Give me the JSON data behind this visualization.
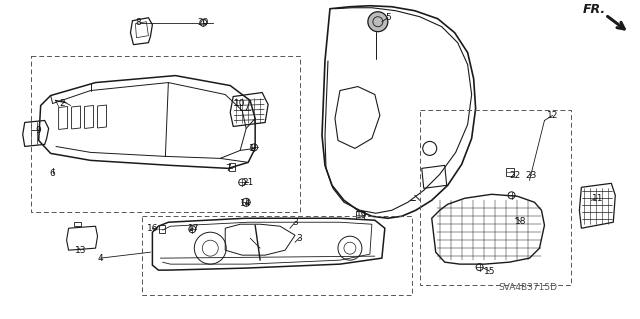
{
  "bg_color": "#ffffff",
  "line_color": "#1a1a1a",
  "diagram_id": "SVA4B3715D",
  "labels": [
    [
      "1",
      252,
      148
    ],
    [
      "2",
      62,
      103
    ],
    [
      "3",
      295,
      222
    ],
    [
      "3",
      299,
      238
    ],
    [
      "4",
      100,
      258
    ],
    [
      "5",
      388,
      17
    ],
    [
      "6",
      52,
      173
    ],
    [
      "7",
      228,
      168
    ],
    [
      "8",
      138,
      22
    ],
    [
      "9",
      38,
      130
    ],
    [
      "10",
      240,
      103
    ],
    [
      "11",
      598,
      198
    ],
    [
      "12",
      553,
      115
    ],
    [
      "13",
      80,
      250
    ],
    [
      "14",
      245,
      203
    ],
    [
      "15",
      490,
      271
    ],
    [
      "16",
      152,
      228
    ],
    [
      "17",
      193,
      228
    ],
    [
      "18",
      521,
      221
    ],
    [
      "19",
      362,
      215
    ],
    [
      "20",
      203,
      22
    ],
    [
      "21",
      248,
      182
    ],
    [
      "22",
      515,
      175
    ],
    [
      "23",
      532,
      175
    ]
  ]
}
